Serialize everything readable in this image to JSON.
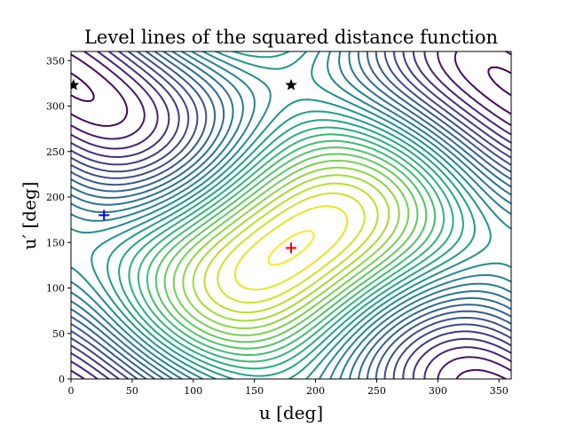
{
  "chart_data": {
    "type": "contour",
    "title": "Level lines of the squared distance function",
    "xlabel": "u [deg]",
    "ylabel": "u′ [deg]",
    "xlim": [
      0,
      360
    ],
    "ylim": [
      0,
      360
    ],
    "xticks": [
      0,
      50,
      100,
      150,
      200,
      250,
      300,
      350
    ],
    "yticks": [
      0,
      50,
      100,
      150,
      200,
      250,
      300,
      350
    ],
    "colormap": "viridis",
    "grid": false,
    "minimum_center": {
      "u": 180,
      "u_prime": 144
    },
    "markers": [
      {
        "name": "star",
        "symbol": "★",
        "u": 2,
        "u_prime": 323,
        "color": "#000000"
      },
      {
        "name": "star",
        "symbol": "★",
        "u": 180,
        "u_prime": 323,
        "color": "#000000"
      },
      {
        "name": "plus",
        "symbol": "+",
        "u": 27,
        "u_prime": 180,
        "color": "#0000ff"
      },
      {
        "name": "plus",
        "symbol": "+",
        "u": 180,
        "u_prime": 144,
        "color": "#ff0000"
      }
    ]
  }
}
